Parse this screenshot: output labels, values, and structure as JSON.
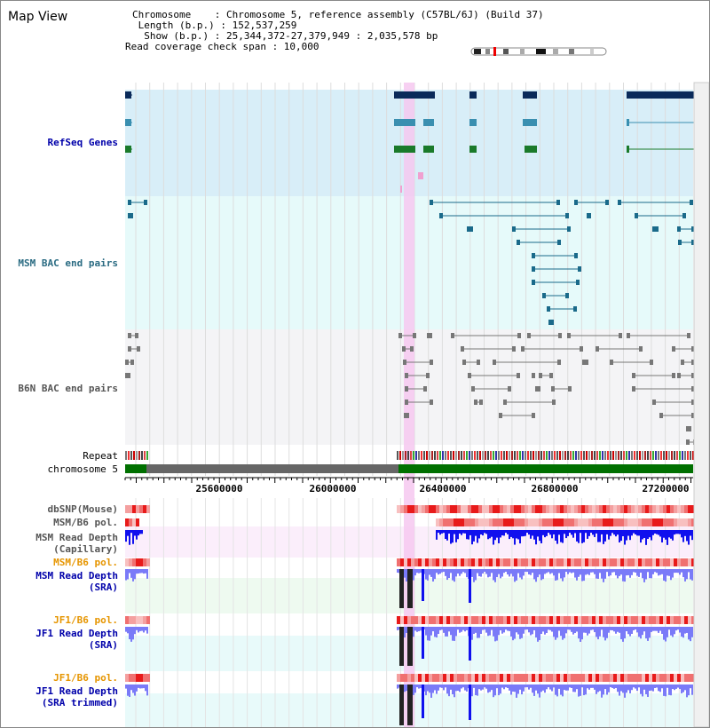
{
  "view": {
    "title": "Map View",
    "chromosome_line": "Chromosome    : Chromosome 5, reference assembly (C57BL/6J) (Build 37)",
    "length_line": " Length (b.p.) : 152,537,259",
    "show_line": "  Show (b.p.) : 25,344,372-27,379,949 : 2,035,578 bp",
    "coverage_line": "Read coverage check span : 10,000"
  },
  "tracks": {
    "refseq": "RefSeq Genes",
    "msm_bac": "MSM BAC end pairs",
    "b6n_bac": "B6N BAC end pairs",
    "repeat": "Repeat",
    "chrom": "chromosome 5",
    "dbsnp": "dbSNP(Mouse)",
    "msm_b6_pol_1": "MSM/B6 pol.",
    "msm_cap": "MSM Read Depth\n(Capillary)",
    "msm_b6_pol_2": "MSM/B6 pol.",
    "msm_sra": "MSM Read Depth\n(SRA)",
    "jf1_b6_pol_1": "JF1/B6 pol.",
    "jf1_sra": "JF1 Read Depth\n(SRA)",
    "jf1_b6_pol_2": "JF1/B6 pol.",
    "jf1_trim": "JF1 Read Depth\n(SRA trimmed)"
  },
  "axis": {
    "ticks": [
      "25600000",
      "26000000",
      "26400000",
      "26800000",
      "27200000"
    ]
  },
  "colors": {
    "refseq_bg": "#d8eef8",
    "bac_bg": "#e6fafa",
    "b6n_bg": "#f4f4f6",
    "highlight": "#f6c8f0",
    "chrom_green": "#007000",
    "chrom_gray": "#666666",
    "depth_blue": "#3a3aff"
  }
}
